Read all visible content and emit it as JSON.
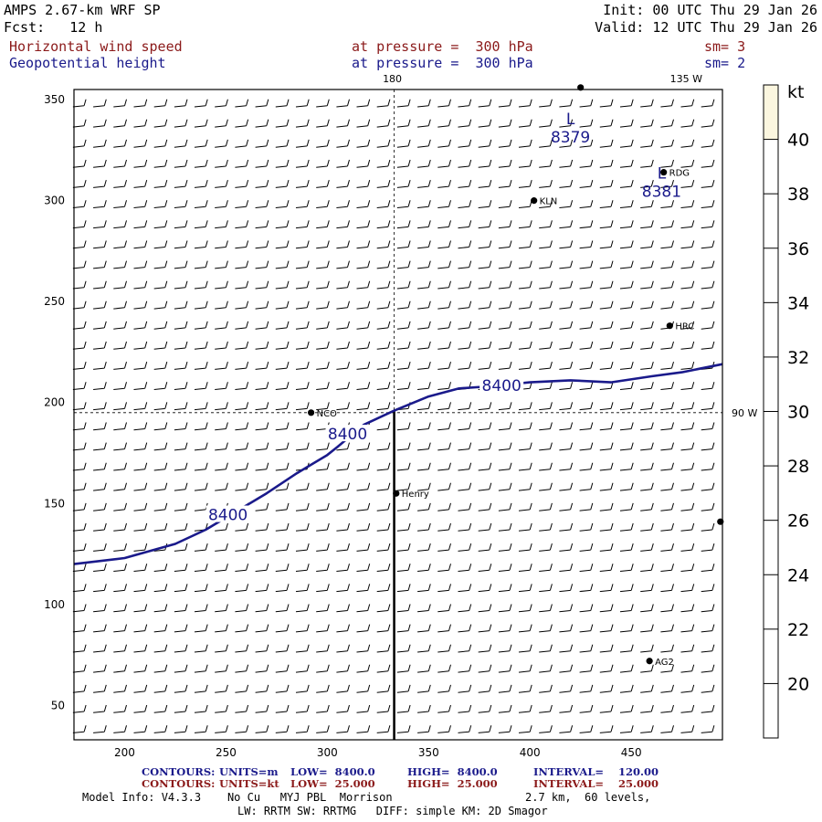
{
  "header": {
    "model": "AMPS 2.67-km WRF SP",
    "fcst": "Fcst:   12 h",
    "init": "Init: 00 UTC Thu 29 Jan 26",
    "valid": "Valid: 12 UTC Thu 29 Jan 26",
    "field1": "Horizontal wind speed",
    "field1_level": "at pressure =  300 hPa",
    "field1_sm": "sm= 3",
    "field2": "Geopotential height",
    "field2_level": "at pressure =  300 hPa",
    "field2_sm": "sm= 2",
    "colors": {
      "field1": "#8b1a1a",
      "field2": "#1a1a8b"
    }
  },
  "chart_data": {
    "type": "contour",
    "xlim": [
      175,
      495
    ],
    "ylim": [
      33,
      355
    ],
    "x_ticks": [
      200,
      250,
      300,
      350,
      400,
      450
    ],
    "y_ticks": [
      50,
      100,
      150,
      200,
      250,
      300,
      350
    ],
    "meridian_labels": [
      {
        "text": "180",
        "x": 333,
        "y": 355
      },
      {
        "text": "135 W",
        "x": 478,
        "y": 355
      },
      {
        "text": "90 W",
        "x": 495,
        "y": 195
      }
    ],
    "graticule": {
      "vertical_x": 333,
      "horizontal_y": 195
    },
    "height_contour": {
      "level": 8400,
      "units": "m",
      "color": "#1a1a8b",
      "points": [
        [
          175,
          120
        ],
        [
          200,
          123
        ],
        [
          225,
          130
        ],
        [
          240,
          137
        ],
        [
          255,
          146
        ],
        [
          270,
          155
        ],
        [
          285,
          165
        ],
        [
          300,
          174
        ],
        [
          305,
          178
        ],
        [
          318,
          189
        ],
        [
          333,
          196
        ],
        [
          350,
          203
        ],
        [
          365,
          207
        ],
        [
          380,
          208
        ],
        [
          400,
          210
        ],
        [
          420,
          211
        ],
        [
          440,
          210
        ],
        [
          460,
          213
        ],
        [
          475,
          215
        ],
        [
          495,
          219
        ]
      ],
      "labels": [
        {
          "text": "8400",
          "x": 251,
          "y": 144
        },
        {
          "text": "8400",
          "x": 310,
          "y": 184
        },
        {
          "text": "8400",
          "x": 386,
          "y": 208
        }
      ]
    },
    "lows": [
      {
        "symbol": "L",
        "value": "8379",
        "x": 420,
        "y": 336
      },
      {
        "symbol": "L",
        "value": "8381",
        "x": 465,
        "y": 309
      }
    ],
    "stations": [
      {
        "name": "KLN",
        "x": 402,
        "y": 300
      },
      {
        "name": "RDG",
        "x": 466,
        "y": 314
      },
      {
        "name": "HRC",
        "x": 469,
        "y": 238
      },
      {
        "name": "NCO",
        "x": 292,
        "y": 195
      },
      {
        "name": "Henry",
        "x": 334,
        "y": 155
      },
      {
        "name": "AG2",
        "x": 459,
        "y": 72
      },
      {
        "name": "",
        "x": 494,
        "y": 141
      },
      {
        "name": "",
        "x": 425,
        "y": 356
      }
    ],
    "south_pole_meridian": {
      "x": 333,
      "from_y": 33,
      "to_y": 196
    },
    "wind_barbs": {
      "direction_deg": 255,
      "speed_kt": 25,
      "spacing_x": 10,
      "spacing_y": 10
    },
    "colorbar": {
      "unit": "kt",
      "ticks": [
        20,
        22,
        24,
        26,
        28,
        30,
        32,
        34,
        36,
        38,
        40
      ],
      "range": [
        18,
        42
      ],
      "shaded": [
        [
          40,
          42
        ]
      ],
      "shade_color": "#fbf6df"
    }
  },
  "footer": {
    "contours_label": "CONTOURS:",
    "line1": {
      "units": "UNITS=m",
      "low": "LOW=  8400.0",
      "high": "HIGH=  8400.0",
      "interval": "INTERVAL=    120.00"
    },
    "line2": {
      "units": "UNITS=kt",
      "low": "LOW=  25.000",
      "high": "HIGH=  25.000",
      "interval": "INTERVAL=    25.000"
    },
    "model_info": "Model Info: V4.3.3    No Cu   MYJ PBL  Morrison",
    "resolution": "2.7 km,  60 levels,",
    "physics": "LW: RRTM SW: RRTMG   DIFF: simple KM: 2D Smagor"
  }
}
